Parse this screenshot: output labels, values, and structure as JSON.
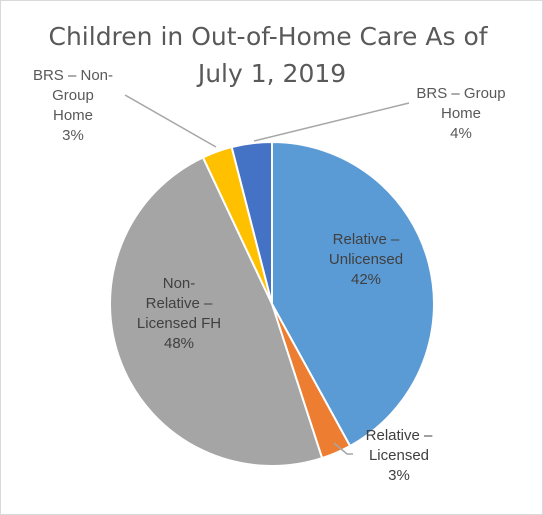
{
  "chart_data": {
    "type": "pie",
    "title_lines": [
      "Children in Out-of-Home Care As of",
      "July 1, 2019"
    ],
    "slices": [
      {
        "label_lines": [
          "Relative –",
          "Unlicensed",
          "42%"
        ],
        "value": 42,
        "color": "#5b9bd5",
        "label_color": "#404040"
      },
      {
        "label_lines": [
          "Relative –",
          "Licensed",
          "3%"
        ],
        "value": 3,
        "color": "#ed7d31",
        "label_color": "#404040"
      },
      {
        "label_lines": [
          "Non-",
          "Relative –",
          "Licensed FH",
          "48%"
        ],
        "value": 48,
        "color": "#a5a5a5",
        "label_color": "#404040"
      },
      {
        "label_lines": [
          "BRS – Non-",
          "Group",
          "Home",
          "3%"
        ],
        "value": 3,
        "color": "#ffc000",
        "label_color": "#595959"
      },
      {
        "label_lines": [
          "BRS – Group",
          "Home",
          "4%"
        ],
        "value": 4,
        "color": "#4472c4",
        "label_color": "#595959"
      }
    ],
    "start_angle_deg": 0,
    "direction": "clockwise",
    "slice_border_color": "#ffffff",
    "leader_line_color": "#a6a6a6",
    "legend": "none"
  }
}
